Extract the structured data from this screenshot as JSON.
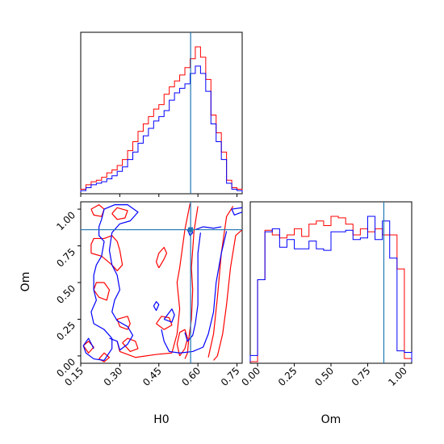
{
  "chart_data": {
    "type": "corner",
    "truth": {
      "H0": 0.572,
      "Om": 0.86
    },
    "colors": {
      "series_a": "#ff0000",
      "series_b": "#0000ff",
      "truth": "#1f77b4"
    },
    "labels": {
      "x_left": "H0",
      "y_left": "Om",
      "x_right": "Om"
    },
    "axes": {
      "H0": {
        "range": [
          0.15,
          0.77
        ],
        "ticks": [
          "0.15",
          "0.30",
          "0.45",
          "0.60",
          "0.75"
        ],
        "tick_values": [
          0.15,
          0.3,
          0.45,
          0.6,
          0.75
        ]
      },
      "Om": {
        "range": [
          -0.05,
          1.05
        ],
        "ticks": [
          "0.00",
          "0.25",
          "0.50",
          "0.75",
          "1.00"
        ],
        "tick_values": [
          0.0,
          0.25,
          0.5,
          0.75,
          1.0
        ]
      }
    },
    "hist_H0": {
      "edges": [
        0.15,
        0.17,
        0.19,
        0.21,
        0.23,
        0.25,
        0.27,
        0.29,
        0.31,
        0.33,
        0.35,
        0.37,
        0.39,
        0.41,
        0.43,
        0.45,
        0.47,
        0.49,
        0.51,
        0.53,
        0.55,
        0.57,
        0.59,
        0.61,
        0.63,
        0.65,
        0.67,
        0.69,
        0.71,
        0.73,
        0.75,
        0.77
      ],
      "series_a": [
        2,
        5,
        7,
        8,
        10,
        13,
        15,
        18,
        22,
        28,
        34,
        41,
        46,
        51,
        56,
        59,
        66,
        71,
        75,
        79,
        84,
        90,
        98,
        91,
        76,
        52,
        40,
        27,
        8,
        3,
        2
      ],
      "series_b": [
        1,
        3,
        5,
        6,
        7,
        9,
        11,
        14,
        17,
        22,
        27,
        33,
        38,
        43,
        48,
        51,
        55,
        62,
        67,
        70,
        73,
        80,
        85,
        80,
        68,
        46,
        34,
        22,
        6,
        2,
        1
      ]
    },
    "hist_Om": {
      "edges": [
        -0.05,
        0.0,
        0.05,
        0.1,
        0.15,
        0.2,
        0.25,
        0.3,
        0.35,
        0.4,
        0.45,
        0.5,
        0.55,
        0.6,
        0.65,
        0.7,
        0.75,
        0.8,
        0.85,
        0.9,
        0.95,
        1.0,
        1.05
      ],
      "series_a": [
        0,
        53,
        85,
        82,
        80,
        82,
        86,
        81,
        89,
        91,
        88,
        94,
        93,
        89,
        82,
        86,
        84,
        86,
        82,
        82,
        60,
        2
      ],
      "series_b": [
        4,
        53,
        84,
        86,
        74,
        79,
        73,
        73,
        78,
        73,
        72,
        84,
        84,
        85,
        79,
        80,
        94,
        79,
        91,
        67,
        7,
        6
      ]
    },
    "contours": {
      "series_a": [
        [
          [
            0.735,
            1.02
          ],
          [
            0.71,
            0.95
          ],
          [
            0.69,
            0.7
          ],
          [
            0.675,
            0.4
          ],
          [
            0.66,
            0.15
          ],
          [
            0.64,
            -0.01
          ]
        ],
        [
          [
            0.77,
            0.86
          ],
          [
            0.745,
            0.82
          ],
          [
            0.725,
            0.6
          ],
          [
            0.71,
            0.35
          ],
          [
            0.695,
            0.15
          ],
          [
            0.675,
            0.0
          ],
          [
            0.66,
            -0.03
          ]
        ],
        [
          [
            0.6,
            1.02
          ],
          [
            0.585,
            0.85
          ],
          [
            0.575,
            0.6
          ],
          [
            0.58,
            0.45
          ],
          [
            0.575,
            0.25
          ],
          [
            0.565,
            0.12
          ],
          [
            0.56,
            0.02
          ],
          [
            0.55,
            -0.02
          ]
        ],
        [
          [
            0.5,
            0.02
          ],
          [
            0.44,
            0.01
          ],
          [
            0.36,
            -0.01
          ],
          [
            0.3,
            0.03
          ],
          [
            0.29,
            0.1
          ]
        ],
        [
          [
            0.5,
            0.02
          ],
          [
            0.52,
            0.15
          ],
          [
            0.53,
            0.32
          ],
          [
            0.52,
            0.5
          ],
          [
            0.53,
            0.6
          ],
          [
            0.55,
            0.86
          ],
          [
            0.57,
            1.04
          ]
        ],
        [
          [
            0.19,
            0.7
          ],
          [
            0.23,
            0.68
          ],
          [
            0.27,
            0.62
          ],
          [
            0.29,
            0.58
          ],
          [
            0.31,
            0.62
          ],
          [
            0.3,
            0.72
          ],
          [
            0.29,
            0.78
          ],
          [
            0.27,
            0.82
          ],
          [
            0.24,
            0.8
          ],
          [
            0.2,
            0.8
          ],
          [
            0.19,
            0.76
          ],
          [
            0.19,
            0.7
          ]
        ],
        [
          [
            0.19,
            1.0
          ],
          [
            0.2,
            0.96
          ],
          [
            0.23,
            0.95
          ],
          [
            0.24,
            1.0
          ],
          [
            0.22,
            1.03
          ],
          [
            0.19,
            1.0
          ]
        ],
        [
          [
            0.27,
            0.97
          ],
          [
            0.29,
            0.93
          ],
          [
            0.32,
            0.94
          ],
          [
            0.33,
            0.99
          ],
          [
            0.29,
            1.01
          ],
          [
            0.27,
            0.97
          ]
        ],
        [
          [
            0.45,
            0.6
          ],
          [
            0.47,
            0.66
          ],
          [
            0.48,
            0.7
          ],
          [
            0.47,
            0.74
          ],
          [
            0.45,
            0.7
          ],
          [
            0.44,
            0.64
          ],
          [
            0.45,
            0.6
          ]
        ],
        [
          [
            0.2,
            0.45
          ],
          [
            0.22,
            0.4
          ],
          [
            0.25,
            0.38
          ],
          [
            0.26,
            0.45
          ],
          [
            0.24,
            0.5
          ],
          [
            0.21,
            0.5
          ],
          [
            0.2,
            0.45
          ]
        ],
        [
          [
            0.33,
            0.18
          ],
          [
            0.34,
            0.22
          ],
          [
            0.33,
            0.27
          ],
          [
            0.29,
            0.25
          ],
          [
            0.3,
            0.2
          ],
          [
            0.33,
            0.18
          ]
        ],
        [
          [
            0.31,
            0.09
          ],
          [
            0.33,
            0.12
          ],
          [
            0.36,
            0.1
          ],
          [
            0.37,
            0.05
          ],
          [
            0.34,
            0.03
          ],
          [
            0.31,
            0.09
          ]
        ],
        [
          [
            0.44,
            0.22
          ],
          [
            0.47,
            0.18
          ],
          [
            0.5,
            0.21
          ],
          [
            0.49,
            0.26
          ],
          [
            0.46,
            0.27
          ],
          [
            0.44,
            0.22
          ]
        ],
        [
          [
            0.53,
            0.0
          ],
          [
            0.55,
            0.05
          ],
          [
            0.56,
            0.12
          ],
          [
            0.55,
            0.18
          ],
          [
            0.53,
            0.16
          ],
          [
            0.52,
            0.08
          ],
          [
            0.53,
            0.0
          ]
        ],
        [
          [
            0.16,
            0.07
          ],
          [
            0.18,
            0.1
          ],
          [
            0.2,
            0.06
          ],
          [
            0.18,
            0.02
          ],
          [
            0.16,
            0.07
          ]
        ],
        [
          [
            0.22,
            -0.02
          ],
          [
            0.24,
            0.02
          ],
          [
            0.26,
            -0.01
          ],
          [
            0.24,
            -0.04
          ],
          [
            0.22,
            -0.02
          ]
        ]
      ],
      "series_b": [
        [
          [
            0.77,
            0.98
          ],
          [
            0.74,
            0.96
          ],
          [
            0.73,
            1.0
          ],
          [
            0.77,
            1.01
          ]
        ],
        [
          [
            0.71,
            0.85
          ],
          [
            0.69,
            0.7
          ],
          [
            0.67,
            0.5
          ],
          [
            0.66,
            0.3
          ],
          [
            0.64,
            0.15
          ],
          [
            0.62,
            0.06
          ],
          [
            0.58,
            0.03
          ],
          [
            0.53,
            0.02
          ],
          [
            0.49,
            0.03
          ],
          [
            0.47,
            0.1
          ],
          [
            0.46,
            0.18
          ]
        ],
        [
          [
            0.61,
            0.84
          ],
          [
            0.6,
            0.7
          ],
          [
            0.6,
            0.5
          ],
          [
            0.6,
            0.35
          ],
          [
            0.59,
            0.22
          ],
          [
            0.58,
            0.14
          ],
          [
            0.56,
            0.1
          ],
          [
            0.55,
            0.16
          ]
        ],
        [
          [
            0.56,
            0.86
          ],
          [
            0.57,
            0.82
          ],
          [
            0.58,
            0.84
          ],
          [
            0.57,
            0.87
          ],
          [
            0.56,
            0.86
          ]
        ],
        [
          [
            0.69,
            0.88
          ],
          [
            0.66,
            0.87
          ],
          [
            0.62,
            0.88
          ],
          [
            0.59,
            0.86
          ]
        ],
        [
          [
            0.17,
            0.02
          ],
          [
            0.2,
            -0.02
          ],
          [
            0.24,
            -0.03
          ],
          [
            0.27,
            0.05
          ],
          [
            0.27,
            0.12
          ],
          [
            0.24,
            0.18
          ],
          [
            0.2,
            0.22
          ],
          [
            0.19,
            0.3
          ],
          [
            0.21,
            0.38
          ],
          [
            0.2,
            0.45
          ],
          [
            0.2,
            0.55
          ],
          [
            0.21,
            0.62
          ],
          [
            0.23,
            0.68
          ],
          [
            0.24,
            0.78
          ],
          [
            0.22,
            0.82
          ],
          [
            0.22,
            0.88
          ],
          [
            0.23,
            0.93
          ],
          [
            0.24,
            1.0
          ],
          [
            0.28,
            1.03
          ],
          [
            0.33,
            1.03
          ],
          [
            0.37,
            0.98
          ],
          [
            0.34,
            0.92
          ],
          [
            0.3,
            0.9
          ],
          [
            0.27,
            0.84
          ],
          [
            0.26,
            0.72
          ],
          [
            0.27,
            0.62
          ],
          [
            0.29,
            0.55
          ],
          [
            0.3,
            0.45
          ],
          [
            0.28,
            0.38
          ],
          [
            0.27,
            0.3
          ],
          [
            0.29,
            0.24
          ],
          [
            0.33,
            0.2
          ],
          [
            0.35,
            0.14
          ],
          [
            0.33,
            0.08
          ],
          [
            0.3,
            0.04
          ],
          [
            0.29,
            0.1
          ],
          [
            0.26,
            0.12
          ]
        ],
        [
          [
            0.17,
            0.02
          ],
          [
            0.16,
            0.07
          ],
          [
            0.18,
            0.12
          ],
          [
            0.2,
            0.05
          ]
        ],
        [
          [
            0.43,
            0.34
          ],
          [
            0.44,
            0.31
          ],
          [
            0.45,
            0.35
          ],
          [
            0.44,
            0.37
          ],
          [
            0.43,
            0.34
          ]
        ],
        [
          [
            0.47,
            0.25
          ],
          [
            0.5,
            0.32
          ],
          [
            0.51,
            0.28
          ],
          [
            0.5,
            0.23
          ],
          [
            0.47,
            0.25
          ]
        ]
      ]
    }
  }
}
